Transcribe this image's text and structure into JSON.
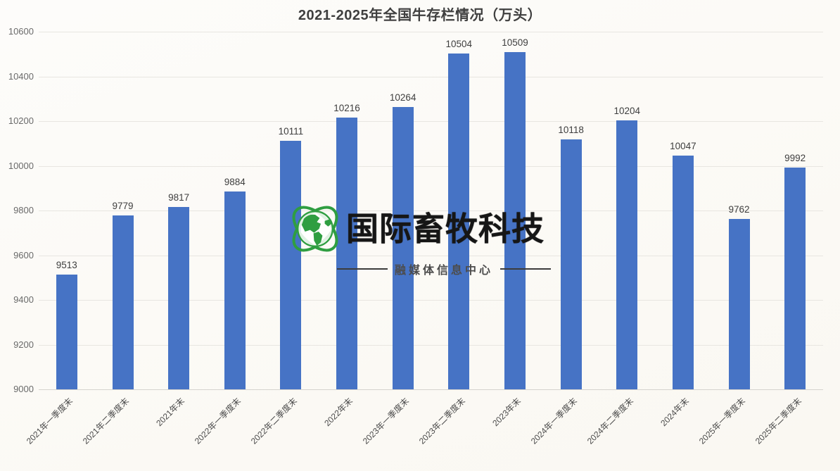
{
  "chart_data": {
    "type": "bar",
    "title": "2021-2025年全国牛存栏情况（万头）",
    "categories": [
      "2021年一季度末",
      "2021年二季度末",
      "2021年末",
      "2022年一季度末",
      "2022年二季度末",
      "2022年末",
      "2023年一季度末",
      "2023年二季度末",
      "2023年末",
      "2024年一季度末",
      "2024年二季度末",
      "2024年末",
      "2025年一季度末",
      "2025年二季度末"
    ],
    "values": [
      9513,
      9779,
      9817,
      9884,
      10111,
      10216,
      10264,
      10504,
      10509,
      10118,
      10204,
      10047,
      9762,
      9992
    ],
    "xlabel": "",
    "ylabel": "",
    "ylim": [
      9000,
      10600
    ],
    "ytick_interval": 200,
    "yticks": [
      9000,
      9200,
      9400,
      9600,
      9800,
      10000,
      10200,
      10400,
      10600
    ],
    "bar_color": "#4673c5",
    "grid": true,
    "legend": false,
    "value_labels": true
  },
  "watermark": {
    "brand": "国际畜牧科技",
    "subtitle": "融媒体信息中心",
    "globe_color": "#2f9e41",
    "brand_color": "#161616"
  }
}
